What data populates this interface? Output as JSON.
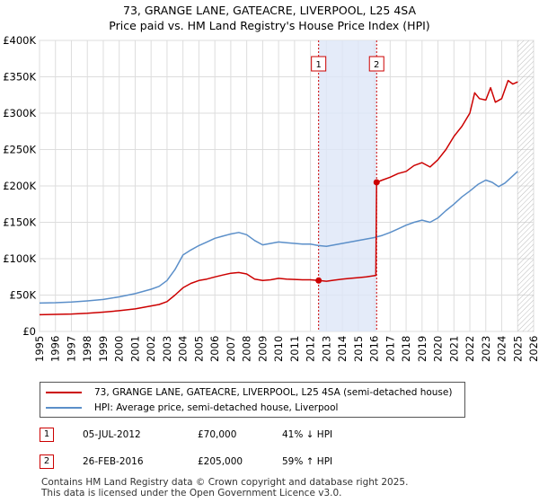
{
  "header": {
    "title_line1": "73, GRANGE LANE, GATEACRE, LIVERPOOL, L25 4SA",
    "title_line2": "Price paid vs. HM Land Registry's House Price Index (HPI)"
  },
  "chart_data": {
    "type": "line",
    "title": "73, GRANGE LANE, GATEACRE, LIVERPOOL, L25 4SA — Price paid vs. HM Land Registry's House Price Index (HPI)",
    "xlabel": "",
    "ylabel": "",
    "xlim": [
      1995,
      2026
    ],
    "ylim": [
      0,
      400000
    ],
    "x_ticks": [
      1995,
      1996,
      1997,
      1998,
      1999,
      2000,
      2001,
      2002,
      2003,
      2004,
      2005,
      2006,
      2007,
      2008,
      2009,
      2010,
      2011,
      2012,
      2013,
      2014,
      2015,
      2016,
      2017,
      2018,
      2019,
      2020,
      2021,
      2022,
      2023,
      2024,
      2025,
      2026
    ],
    "y_ticks": [
      {
        "value": 0,
        "label": "£0"
      },
      {
        "value": 50000,
        "label": "£50K"
      },
      {
        "value": 100000,
        "label": "£100K"
      },
      {
        "value": 150000,
        "label": "£150K"
      },
      {
        "value": 200000,
        "label": "£200K"
      },
      {
        "value": 250000,
        "label": "£250K"
      },
      {
        "value": 300000,
        "label": "£300K"
      },
      {
        "value": 350000,
        "label": "£350K"
      },
      {
        "value": 400000,
        "label": "£400K"
      }
    ],
    "grid": true,
    "shaded_range": [
      2012.51,
      2016.15
    ],
    "hatched_from": 2025.0,
    "series": [
      {
        "name": "73, GRANGE LANE, GATEACRE, LIVERPOOL, L25 4SA (semi-detached house)",
        "color": "#cc0000",
        "x": [
          1995.0,
          1996.0,
          1997.0,
          1998.0,
          1999.0,
          2000.0,
          2001.0,
          2002.0,
          2002.5,
          2003.0,
          2003.5,
          2004.0,
          2004.5,
          2005.0,
          2005.5,
          2006.0,
          2006.5,
          2007.0,
          2007.5,
          2008.0,
          2008.5,
          2009.0,
          2009.5,
          2010.0,
          2010.5,
          2011.0,
          2011.5,
          2012.0,
          2012.51,
          2013.0,
          2013.5,
          2014.0,
          2014.5,
          2015.0,
          2015.5,
          2016.1,
          2016.15,
          2016.5,
          2017.0,
          2017.5,
          2018.0,
          2018.5,
          2019.0,
          2019.5,
          2020.0,
          2020.5,
          2021.0,
          2021.5,
          2022.0,
          2022.3,
          2022.6,
          2023.0,
          2023.3,
          2023.6,
          2024.0,
          2024.4,
          2024.7,
          2025.0
        ],
        "values": [
          23000,
          23500,
          24000,
          25000,
          26500,
          28500,
          31000,
          35000,
          37000,
          41000,
          50000,
          60000,
          66000,
          70000,
          72000,
          75000,
          77500,
          80000,
          81000,
          79000,
          72000,
          70000,
          71000,
          73000,
          72000,
          71500,
          71000,
          71000,
          70000,
          69000,
          70500,
          72000,
          73000,
          74000,
          75000,
          77000,
          205000,
          208000,
          212000,
          217000,
          220000,
          228000,
          232000,
          226000,
          236000,
          250000,
          268000,
          282000,
          300000,
          328000,
          320000,
          318000,
          335000,
          315000,
          320000,
          345000,
          340000,
          343000
        ]
      },
      {
        "name": "HPI: Average price, semi-detached house, Liverpool",
        "color": "#5b8fc9",
        "x": [
          1995.0,
          1996.0,
          1997.0,
          1998.0,
          1999.0,
          2000.0,
          2001.0,
          2002.0,
          2002.5,
          2003.0,
          2003.5,
          2004.0,
          2004.5,
          2005.0,
          2005.5,
          2006.0,
          2006.5,
          2007.0,
          2007.5,
          2008.0,
          2008.5,
          2009.0,
          2009.5,
          2010.0,
          2010.5,
          2011.0,
          2011.5,
          2012.0,
          2012.5,
          2013.0,
          2013.5,
          2014.0,
          2014.5,
          2015.0,
          2015.5,
          2016.0,
          2016.5,
          2017.0,
          2017.5,
          2018.0,
          2018.5,
          2019.0,
          2019.5,
          2020.0,
          2020.5,
          2021.0,
          2021.5,
          2022.0,
          2022.5,
          2023.0,
          2023.4,
          2023.8,
          2024.2,
          2024.6,
          2025.0
        ],
        "values": [
          39000,
          39500,
          40500,
          42000,
          44000,
          47500,
          52000,
          58000,
          62000,
          70000,
          85000,
          105000,
          112000,
          118000,
          123000,
          128000,
          131000,
          134000,
          136000,
          133000,
          125000,
          119000,
          121000,
          123000,
          122000,
          121000,
          120000,
          120000,
          118000,
          117000,
          119000,
          121000,
          123000,
          125000,
          127000,
          129000,
          132000,
          136000,
          141000,
          146000,
          150000,
          153000,
          150000,
          156000,
          166000,
          175000,
          185000,
          193000,
          202000,
          208000,
          205000,
          199000,
          204000,
          212000,
          220000
        ]
      }
    ],
    "sales": [
      {
        "label": "1",
        "x": 2012.51,
        "value": 70000
      },
      {
        "label": "2",
        "x": 2016.15,
        "value": 205000
      }
    ]
  },
  "legend": {
    "items": [
      {
        "label": "73, GRANGE LANE, GATEACRE, LIVERPOOL, L25 4SA (semi-detached house)",
        "color": "#cc0000"
      },
      {
        "label": "HPI: Average price, semi-detached house, Liverpool",
        "color": "#5b8fc9"
      }
    ]
  },
  "sales_table": [
    {
      "marker": "1",
      "date": "05-JUL-2012",
      "price": "£70,000",
      "hpi": "41% ↓ HPI"
    },
    {
      "marker": "2",
      "date": "26-FEB-2016",
      "price": "£205,000",
      "hpi": "59% ↑ HPI"
    }
  ],
  "footer": {
    "line1": "Contains HM Land Registry data © Crown copyright and database right 2025.",
    "line2": "This data is licensed under the Open Government Licence v3.0."
  }
}
